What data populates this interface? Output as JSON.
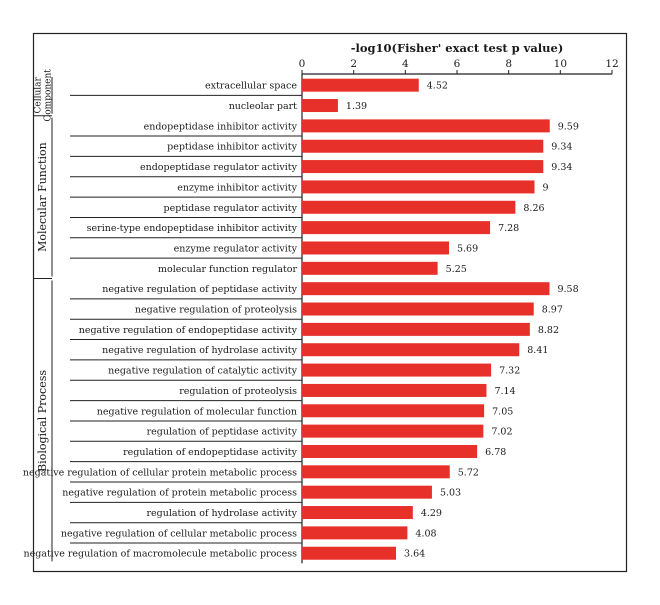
{
  "chart_data": {
    "type": "bar",
    "orientation": "horizontal",
    "title": "-log10(Fisher' exact test p value)",
    "xlim": [
      0,
      12
    ],
    "xticks": [
      "0",
      "2",
      "4",
      "6",
      "8",
      "10",
      "12"
    ],
    "bar_color": "#e8302a",
    "groups": [
      {
        "name": "Cellular Component",
        "name_lines": [
          "Cellular",
          "Component"
        ],
        "categories": [
          "extracellular space",
          "nucleolar part"
        ],
        "values": [
          4.52,
          1.39
        ],
        "labels": [
          "4.52",
          "1.39"
        ]
      },
      {
        "name": "Molecular Function",
        "name_lines": [
          "Molecular Function"
        ],
        "categories": [
          "endopeptidase inhibitor activity",
          "peptidase inhibitor activity",
          "endopeptidase regulator activity",
          "enzyme inhibitor activity",
          "peptidase regulator activity",
          "serine-type endopeptidase inhibitor activity",
          "enzyme regulator activity",
          "molecular function regulator"
        ],
        "values": [
          9.59,
          9.34,
          9.34,
          9,
          8.26,
          7.28,
          5.69,
          5.25
        ],
        "labels": [
          "9.59",
          "9.34",
          "9.34",
          "9",
          "8.26",
          "7.28",
          "5.69",
          "5.25"
        ]
      },
      {
        "name": "Biological Process",
        "name_lines": [
          "Biological Process"
        ],
        "categories": [
          "negative regulation of peptidase activity",
          "negative regulation of proteolysis",
          "negative regulation of endopeptidase activity",
          "negative regulation of hydrolase activity",
          "negative regulation of catalytic activity",
          "regulation of proteolysis",
          "negative regulation of molecular function",
          "regulation of peptidase activity",
          "regulation of endopeptidase activity",
          "negative regulation of cellular protein metabolic process",
          "negative regulation of protein metabolic process",
          "regulation of hydrolase activity",
          "negative regulation of cellular metabolic process",
          "negative regulation of macromolecule metabolic process"
        ],
        "values": [
          9.58,
          8.97,
          8.82,
          8.41,
          7.32,
          7.14,
          7.05,
          7.02,
          6.78,
          5.72,
          5.03,
          4.29,
          4.08,
          3.64
        ],
        "labels": [
          "9.58",
          "8.97",
          "8.82",
          "8.41",
          "7.32",
          "7.14",
          "7.05",
          "7.02",
          "6.78",
          "5.72",
          "5.03",
          "4.29",
          "4.08",
          "3.64"
        ]
      }
    ]
  }
}
